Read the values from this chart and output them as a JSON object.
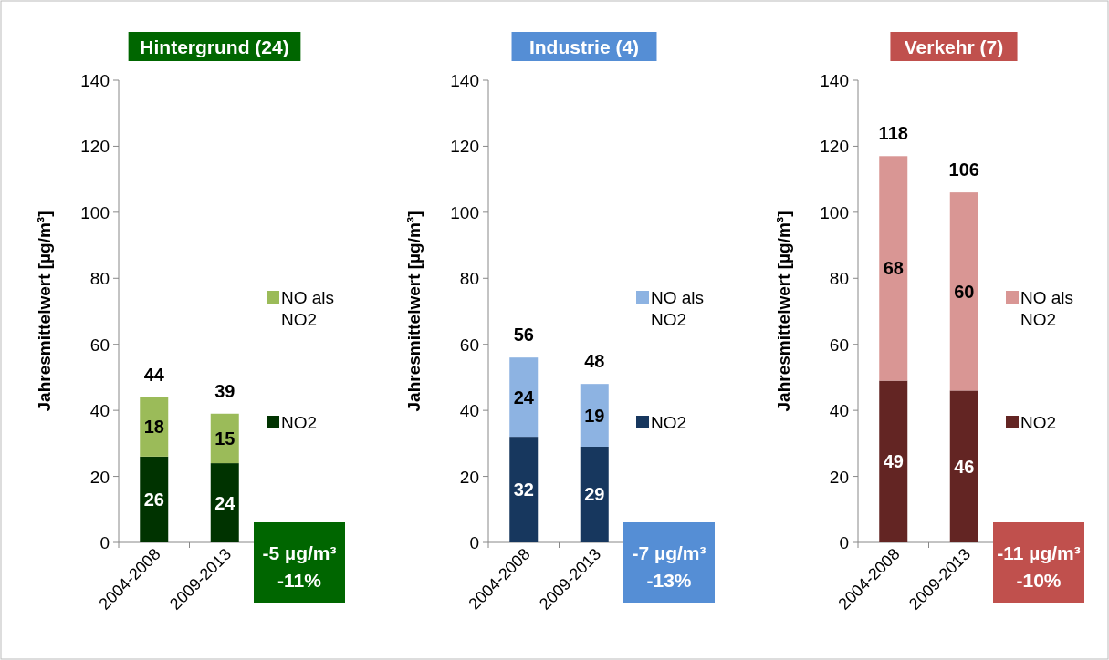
{
  "chart_data": [
    {
      "type": "bar",
      "title": "Hintergrund (24)",
      "categories": [
        "2004-2008",
        "2009-2013"
      ],
      "stacked": true,
      "ylabel": "Jahresmittelwert  [µg/m³]",
      "ylim": [
        0,
        140
      ],
      "yticks": [
        0,
        20,
        40,
        60,
        80,
        100,
        120,
        140
      ],
      "legend": "right",
      "data_labels": true,
      "totals": [
        "44",
        "39"
      ],
      "annotations": [
        "-5 µg/m³",
        "-11%"
      ],
      "series": [
        {
          "name": "NO2",
          "color": "#003300",
          "values": [
            26,
            24
          ]
        },
        {
          "name": "NO als NO2",
          "color": "#9bbb59",
          "values": [
            18,
            15
          ]
        }
      ]
    },
    {
      "type": "bar",
      "title": "Industrie (4)",
      "categories": [
        "2004-2008",
        "2009-2013"
      ],
      "stacked": true,
      "ylabel": "Jahresmittelwert  [µg/m³]",
      "ylim": [
        0,
        140
      ],
      "yticks": [
        0,
        20,
        40,
        60,
        80,
        100,
        120,
        140
      ],
      "legend": "right",
      "data_labels": true,
      "totals": [
        "56",
        "48"
      ],
      "annotations": [
        "-7 µg/m³",
        "-13%"
      ],
      "series": [
        {
          "name": "NO2",
          "color": "#17375e",
          "values": [
            32,
            29
          ]
        },
        {
          "name": "NO als NO2",
          "color": "#8db3e2",
          "values": [
            24,
            19
          ]
        }
      ]
    },
    {
      "type": "bar",
      "title": "Verkehr (7)",
      "categories": [
        "2004-2008",
        "2009-2013"
      ],
      "stacked": true,
      "ylabel": "Jahresmittelwert  [µg/m³]",
      "ylim": [
        0,
        140
      ],
      "yticks": [
        0,
        20,
        40,
        60,
        80,
        100,
        120,
        140
      ],
      "legend": "right",
      "data_labels": true,
      "totals": [
        "118",
        "106"
      ],
      "annotations": [
        "-11 µg/m³",
        "-10%"
      ],
      "series": [
        {
          "name": "NO2",
          "color": "#632523",
          "values": [
            49,
            46
          ]
        },
        {
          "name": "NO als NO2",
          "color": "#d99694",
          "values": [
            68,
            60
          ]
        }
      ]
    }
  ]
}
